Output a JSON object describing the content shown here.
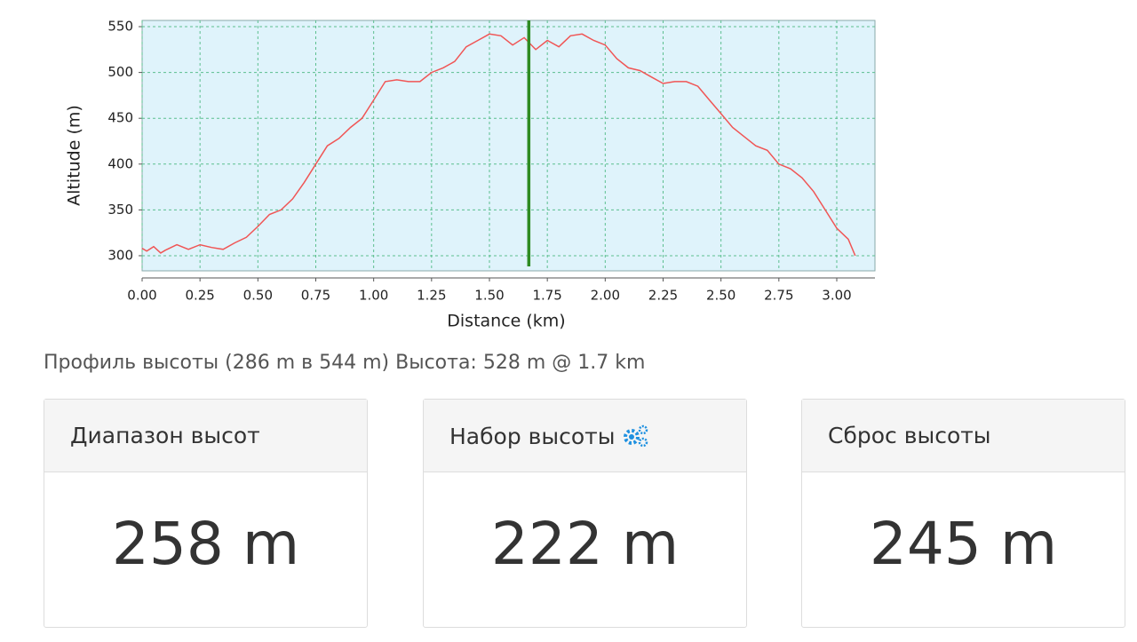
{
  "chart_data": {
    "type": "line",
    "xlabel": "Distance (km)",
    "ylabel": "Altitude (m)",
    "x": [
      0.0,
      0.02,
      0.05,
      0.08,
      0.1,
      0.15,
      0.2,
      0.25,
      0.3,
      0.35,
      0.4,
      0.45,
      0.5,
      0.55,
      0.6,
      0.65,
      0.7,
      0.75,
      0.8,
      0.85,
      0.9,
      0.95,
      1.0,
      1.05,
      1.1,
      1.15,
      1.2,
      1.25,
      1.3,
      1.35,
      1.4,
      1.45,
      1.5,
      1.55,
      1.6,
      1.65,
      1.7,
      1.75,
      1.8,
      1.85,
      1.9,
      1.95,
      2.0,
      2.05,
      2.1,
      2.15,
      2.2,
      2.25,
      2.3,
      2.35,
      2.4,
      2.45,
      2.5,
      2.55,
      2.6,
      2.65,
      2.7,
      2.75,
      2.8,
      2.85,
      2.9,
      2.95,
      3.0,
      3.05,
      3.08
    ],
    "values": [
      308,
      305,
      310,
      303,
      306,
      312,
      307,
      312,
      309,
      307,
      314,
      320,
      332,
      345,
      350,
      362,
      380,
      400,
      420,
      428,
      440,
      450,
      470,
      490,
      492,
      490,
      490,
      500,
      505,
      512,
      528,
      535,
      542,
      540,
      530,
      538,
      525,
      535,
      528,
      540,
      542,
      535,
      530,
      515,
      505,
      502,
      495,
      488,
      490,
      490,
      485,
      470,
      455,
      440,
      430,
      420,
      415,
      400,
      395,
      385,
      370,
      350,
      330,
      318,
      300
    ],
    "color": "#f05555",
    "cursor_x": 1.67,
    "cursor_color": "#2e8b22",
    "xlim": [
      0,
      3.165
    ],
    "ylim": [
      283.5,
      556.8
    ],
    "xticks": [
      {
        "value": 0,
        "label": "0.00"
      },
      0.25,
      {
        "value": 0.5,
        "label": "0.50"
      },
      0.75,
      {
        "value": 1,
        "label": "1.00"
      },
      1.25,
      {
        "value": 1.5,
        "label": "1.50"
      },
      1.75,
      {
        "value": 2,
        "label": "2.00"
      },
      2.25,
      {
        "value": 2.5,
        "label": "2.50"
      },
      2.75,
      {
        "value": 3,
        "label": "3.00"
      }
    ],
    "yticks": [
      300,
      350,
      400,
      450,
      500,
      550
    ],
    "grid": true
  },
  "caption": "Профиль высоты (286 m в 544 m) Высота: 528 m @ 1.7 km",
  "cards": [
    {
      "title": "Диапазон высот",
      "value": "258 m"
    },
    {
      "title": "Набор высоты",
      "value": "222 m"
    },
    {
      "title": "Сброс высоты",
      "value": "245 m"
    }
  ]
}
